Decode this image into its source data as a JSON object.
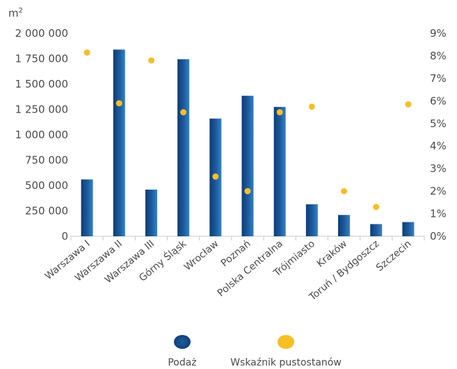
{
  "chart_data": {
    "type": "bar",
    "unit_label": "m",
    "unit_sup": "2",
    "categories": [
      "Warszawa I",
      "Warszawa II",
      "Warszawa III",
      "Górny Śląsk",
      "Wrocław",
      "Poznań",
      "Polska Centralna",
      "Trójmiasto",
      "Kraków",
      "Toruń / Bydgoszcz",
      "Szczecin"
    ],
    "series": [
      {
        "name": "Podaż",
        "kind": "bar",
        "axis": "left",
        "color": "#1f5a98",
        "values": [
          560000,
          1840000,
          460000,
          1745000,
          1160000,
          1385000,
          1275000,
          315000,
          210000,
          120000,
          140000
        ]
      },
      {
        "name": "Wskaźnik pustostanów",
        "kind": "scatter",
        "axis": "right",
        "color": "#f7bf26",
        "values": [
          8.15,
          5.9,
          7.8,
          5.5,
          2.65,
          2.0,
          5.5,
          5.75,
          2.0,
          1.3,
          5.85
        ]
      }
    ],
    "y_left": {
      "min": 0,
      "max": 2000000,
      "ticks": [
        "0",
        "250 000",
        "500 000",
        "750 000",
        "1 000 000",
        "1 250 000",
        "1 500 000",
        "1 750 000",
        "2 000 000"
      ]
    },
    "y_right": {
      "min": 0,
      "max": 9,
      "ticks": [
        "0%",
        "1%",
        "2%",
        "3%",
        "4%",
        "5%",
        "6%",
        "7%",
        "8%",
        "9%"
      ]
    },
    "grid": false,
    "legend_position": "bottom"
  },
  "colors": {
    "bar_dark": "#103f78",
    "bar_light": "#2f78c0",
    "dot": "#f7bf26",
    "axis": "#c9c9c9",
    "text": "#4a4a4a"
  }
}
